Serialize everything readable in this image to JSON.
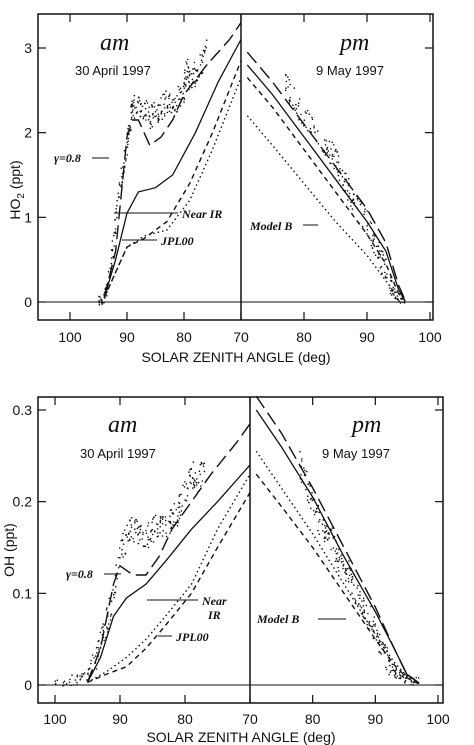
{
  "chart_data": [
    {
      "type": "line",
      "ylabel": "HO2 (ppt)",
      "ylabel_main": "HO",
      "ylabel_sub": "2",
      "ylabel_unit": " (ppt)",
      "xlabel": "SOLAR ZENITH ANGLE (deg)",
      "ylim": [
        -0.1,
        3.3
      ],
      "yticks": [
        "0",
        "1",
        "2",
        "3"
      ],
      "xticks_left": [
        "100",
        "90",
        "80",
        "70"
      ],
      "xticks_right": [
        "80",
        "90",
        "100"
      ],
      "am_label": "am",
      "pm_label": "pm",
      "am_date": "30 April 1997",
      "pm_date": "9 May 1997",
      "annotations": {
        "gamma": "γ=0.8",
        "near_ir": "Near IR",
        "jpl": "JPL00",
        "model_b": "Model B"
      },
      "series": [
        {
          "style": "long-dash",
          "am": [
            [
              94,
              0.05
            ],
            [
              92,
              0.6
            ],
            [
              90,
              1.95
            ],
            [
              89,
              2.15
            ],
            [
              88,
              2.15
            ],
            [
              86,
              1.85
            ],
            [
              84,
              1.95
            ],
            [
              82,
              2.15
            ],
            [
              80,
              2.45
            ],
            [
              76,
              2.8
            ],
            [
              72,
              3.1
            ],
            [
              70,
              3.3
            ]
          ],
          "pm": [
            [
              71,
              2.95
            ],
            [
              75,
              2.6
            ],
            [
              80,
              2.1
            ],
            [
              85,
              1.6
            ],
            [
              90,
              1.1
            ],
            [
              93,
              0.7
            ],
            [
              95,
              0.2
            ],
            [
              96,
              0.03
            ]
          ]
        },
        {
          "style": "solid",
          "am": [
            [
              94,
              0.05
            ],
            [
              92,
              0.5
            ],
            [
              90,
              1.05
            ],
            [
              88,
              1.3
            ],
            [
              85,
              1.35
            ],
            [
              82,
              1.5
            ],
            [
              78,
              2.0
            ],
            [
              74,
              2.6
            ],
            [
              70,
              3.1
            ]
          ],
          "pm": [
            [
              71,
              2.8
            ],
            [
              75,
              2.45
            ],
            [
              80,
              1.95
            ],
            [
              85,
              1.45
            ],
            [
              90,
              0.95
            ],
            [
              93,
              0.6
            ],
            [
              95,
              0.15
            ],
            [
              96,
              0.02
            ]
          ]
        },
        {
          "style": "short-dash",
          "am": [
            [
              94,
              0.05
            ],
            [
              92,
              0.35
            ],
            [
              90,
              0.65
            ],
            [
              87,
              0.75
            ],
            [
              83,
              0.95
            ],
            [
              79,
              1.4
            ],
            [
              75,
              2.0
            ],
            [
              70,
              2.85
            ]
          ],
          "pm": [
            [
              71,
              2.65
            ],
            [
              75,
              2.3
            ],
            [
              80,
              1.8
            ],
            [
              85,
              1.3
            ],
            [
              90,
              0.8
            ],
            [
              93,
              0.45
            ],
            [
              95,
              0.1
            ],
            [
              96,
              0.02
            ]
          ]
        },
        {
          "style": "dotted",
          "am": [
            [
              94,
              0.05
            ],
            [
              92,
              0.35
            ],
            [
              90,
              0.65
            ],
            [
              87,
              0.78
            ],
            [
              83,
              0.85
            ],
            [
              79,
              1.2
            ],
            [
              75,
              1.8
            ],
            [
              70,
              2.65
            ]
          ],
          "pm": [
            [
              71,
              2.2
            ],
            [
              75,
              1.85
            ],
            [
              80,
              1.4
            ],
            [
              85,
              0.95
            ],
            [
              90,
              0.55
            ],
            [
              93,
              0.25
            ],
            [
              95,
              0.05
            ],
            [
              96,
              0.02
            ]
          ]
        }
      ],
      "observations": {
        "am": [
          [
            95,
            0.02
          ],
          [
            94,
            0.03
          ],
          [
            93,
            0.4
          ],
          [
            92,
            0.9
          ],
          [
            91,
            1.5
          ],
          [
            90,
            1.85
          ],
          [
            89.5,
            2.05
          ],
          [
            89,
            2.3
          ],
          [
            88,
            2.35
          ],
          [
            87,
            2.3
          ],
          [
            86,
            2.15
          ],
          [
            85,
            2.25
          ],
          [
            84,
            2.3
          ],
          [
            83,
            2.35
          ],
          [
            82,
            2.3
          ],
          [
            81,
            2.4
          ],
          [
            80,
            2.5
          ],
          [
            79.5,
            2.8
          ],
          [
            79,
            2.6
          ],
          [
            78,
            2.7
          ],
          [
            77,
            2.8
          ],
          [
            76,
            2.95
          ]
        ],
        "pm": [
          [
            77,
            2.6
          ],
          [
            78,
            2.45
          ],
          [
            80,
            2.2
          ],
          [
            82,
            1.95
          ],
          [
            84,
            1.8
          ],
          [
            85,
            1.7
          ],
          [
            86,
            1.45
          ],
          [
            87,
            1.35
          ],
          [
            88,
            1.15
          ],
          [
            90,
            0.95
          ],
          [
            91,
            0.75
          ],
          [
            92,
            0.55
          ],
          [
            93,
            0.4
          ],
          [
            94,
            0.15
          ],
          [
            95,
            0.05
          ],
          [
            96,
            0.02
          ]
        ]
      }
    },
    {
      "type": "line",
      "ylabel": "OH (ppt)",
      "xlabel": "SOLAR ZENITH ANGLE (deg)",
      "ylim": [
        -0.015,
        0.32
      ],
      "yticks": [
        "0",
        "0.1",
        "0.2",
        "0.3"
      ],
      "xticks_left": [
        "100",
        "90",
        "80",
        "70"
      ],
      "xticks_right": [
        "80",
        "90",
        "100"
      ],
      "am_label": "am",
      "pm_label": "pm",
      "am_date": "30 April 1997",
      "pm_date": "9 May 1997",
      "annotations": {
        "gamma": "γ=0.8",
        "near_ir_1": "Near",
        "near_ir_2": "IR",
        "jpl": "JPL00",
        "model_b": "Model B"
      },
      "series": [
        {
          "style": "long-dash",
          "am": [
            [
              95,
              0.003
            ],
            [
              93,
              0.04
            ],
            [
              91,
              0.11
            ],
            [
              90,
              0.13
            ],
            [
              88,
              0.12
            ],
            [
              86,
              0.12
            ],
            [
              84,
              0.14
            ],
            [
              82,
              0.17
            ],
            [
              80,
              0.19
            ],
            [
              76,
              0.23
            ],
            [
              72,
              0.265
            ],
            [
              70,
              0.285
            ]
          ],
          "pm": [
            [
              71,
              0.315
            ],
            [
              75,
              0.275
            ],
            [
              80,
              0.215
            ],
            [
              85,
              0.15
            ],
            [
              90,
              0.085
            ],
            [
              93,
              0.04
            ],
            [
              95,
              0.012
            ],
            [
              97,
              0.002
            ]
          ]
        },
        {
          "style": "solid",
          "am": [
            [
              95,
              0.003
            ],
            [
              93,
              0.03
            ],
            [
              91,
              0.075
            ],
            [
              89,
              0.095
            ],
            [
              86,
              0.11
            ],
            [
              83,
              0.135
            ],
            [
              79,
              0.17
            ],
            [
              75,
              0.2
            ],
            [
              70,
              0.24
            ]
          ],
          "pm": [
            [
              71,
              0.3
            ],
            [
              75,
              0.26
            ],
            [
              80,
              0.205
            ],
            [
              85,
              0.14
            ],
            [
              90,
              0.08
            ],
            [
              93,
              0.04
            ],
            [
              95,
              0.012
            ],
            [
              97,
              0.002
            ]
          ]
        },
        {
          "style": "short-dash",
          "am": [
            [
              95,
              0.003
            ],
            [
              92,
              0.012
            ],
            [
              89,
              0.02
            ],
            [
              86,
              0.04
            ],
            [
              83,
              0.065
            ],
            [
              79,
              0.1
            ],
            [
              75,
              0.15
            ],
            [
              70,
              0.21
            ]
          ],
          "pm": [
            [
              71,
              0.23
            ],
            [
              75,
              0.195
            ],
            [
              80,
              0.15
            ],
            [
              85,
              0.1
            ],
            [
              90,
              0.05
            ],
            [
              93,
              0.022
            ],
            [
              95,
              0.008
            ],
            [
              97,
              0.001
            ]
          ]
        },
        {
          "style": "dotted",
          "am": [
            [
              95,
              0.003
            ],
            [
              92,
              0.015
            ],
            [
              89,
              0.03
            ],
            [
              86,
              0.05
            ],
            [
              83,
              0.075
            ],
            [
              79,
              0.11
            ],
            [
              75,
              0.17
            ],
            [
              70,
              0.23
            ]
          ],
          "pm": [
            [
              71,
              0.255
            ],
            [
              75,
              0.215
            ],
            [
              80,
              0.165
            ],
            [
              85,
              0.11
            ],
            [
              90,
              0.055
            ],
            [
              93,
              0.025
            ],
            [
              95,
              0.01
            ],
            [
              97,
              0.001
            ]
          ]
        }
      ],
      "observations": {
        "am": [
          [
            100,
            0.005
          ],
          [
            97,
            0.005
          ],
          [
            95,
            0.01
          ],
          [
            94,
            0.02
          ],
          [
            93,
            0.045
          ],
          [
            92,
            0.07
          ],
          [
            91,
            0.1
          ],
          [
            90,
            0.15
          ],
          [
            89,
            0.16
          ],
          [
            88,
            0.17
          ],
          [
            87,
            0.165
          ],
          [
            86,
            0.16
          ],
          [
            85,
            0.17
          ],
          [
            84,
            0.175
          ],
          [
            83,
            0.17
          ],
          [
            82,
            0.18
          ],
          [
            81,
            0.19
          ],
          [
            80,
            0.21
          ],
          [
            79,
            0.23
          ],
          [
            78,
            0.225
          ],
          [
            77,
            0.24
          ]
        ],
        "pm": [
          [
            78,
            0.24
          ],
          [
            79,
            0.22
          ],
          [
            80,
            0.2
          ],
          [
            81,
            0.18
          ],
          [
            82,
            0.17
          ],
          [
            83,
            0.16
          ],
          [
            84,
            0.14
          ],
          [
            85,
            0.13
          ],
          [
            86,
            0.12
          ],
          [
            87,
            0.1
          ],
          [
            88,
            0.09
          ],
          [
            89,
            0.075
          ],
          [
            90,
            0.06
          ],
          [
            91,
            0.04
          ],
          [
            92,
            0.025
          ],
          [
            93,
            0.015
          ],
          [
            94,
            0.01
          ],
          [
            95,
            0.005
          ],
          [
            97,
            0.002
          ]
        ]
      }
    }
  ]
}
